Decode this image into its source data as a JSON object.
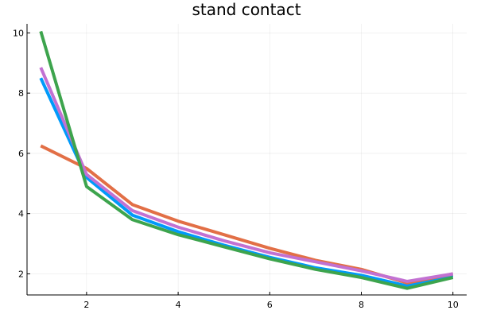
{
  "chart_data": {
    "type": "line",
    "title": "stand contact",
    "xlabel": "",
    "ylabel": "",
    "xlim": [
      0.7,
      10.3
    ],
    "ylim": [
      1.3,
      10.3
    ],
    "xticks": [
      2,
      4,
      6,
      8,
      10
    ],
    "yticks": [
      2,
      4,
      6,
      8,
      10
    ],
    "grid": true,
    "legend": "none",
    "x": [
      1,
      2,
      3,
      4,
      5,
      6,
      7,
      8,
      9,
      10
    ],
    "series": [
      {
        "color": "#009AFA",
        "values": [
          8.5,
          5.2,
          3.95,
          3.4,
          2.95,
          2.55,
          2.2,
          1.95,
          1.6,
          1.95
        ]
      },
      {
        "color": "#E26F46",
        "values": [
          6.25,
          5.5,
          4.3,
          3.75,
          3.3,
          2.85,
          2.45,
          2.15,
          1.7,
          2.0
        ]
      },
      {
        "color": "#C271D2",
        "values": [
          8.85,
          5.3,
          4.1,
          3.55,
          3.1,
          2.7,
          2.4,
          2.1,
          1.75,
          2.0
        ]
      },
      {
        "color": "#3DA44D",
        "values": [
          10.05,
          4.9,
          3.8,
          3.3,
          2.9,
          2.5,
          2.15,
          1.88,
          1.52,
          1.88
        ]
      }
    ]
  }
}
